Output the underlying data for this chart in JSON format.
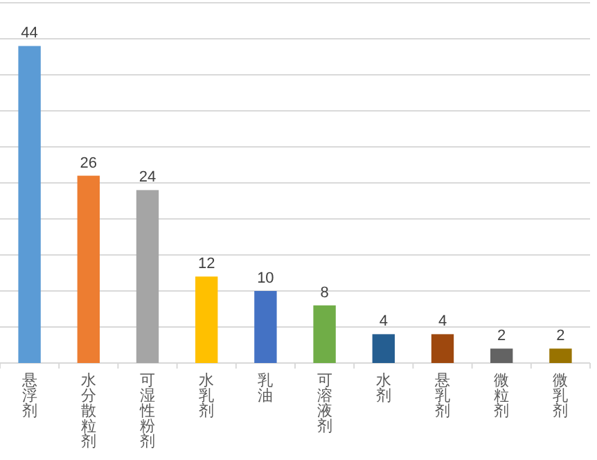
{
  "chart_data": {
    "type": "bar",
    "categories": [
      "悬浮剂",
      "水分散粒剂",
      "可湿性粉剂",
      "水乳剂",
      "乳油",
      "可溶液剂",
      "水剂",
      "悬乳剂",
      "微粒剂",
      "微乳剂"
    ],
    "values": [
      44,
      26,
      24,
      12,
      10,
      8,
      4,
      4,
      2,
      2
    ],
    "colors": [
      "#5b9bd5",
      "#ed7d31",
      "#a5a5a5",
      "#ffc000",
      "#4472c4",
      "#70ad47",
      "#255e91",
      "#9e480e",
      "#636363",
      "#997300"
    ],
    "ylim": [
      0,
      50
    ],
    "yticks": [
      {
        "value": 0,
        "label": null
      },
      {
        "value": 5,
        "label": null
      },
      {
        "value": 10,
        "label": null
      },
      {
        "value": 15,
        "label": null
      },
      {
        "value": 20,
        "label": null
      },
      {
        "value": 25,
        "label": null
      },
      {
        "value": 30,
        "label": null
      },
      {
        "value": 35,
        "label": null
      },
      {
        "value": 40,
        "label": null
      },
      {
        "value": 45,
        "label": null
      },
      {
        "value": 50,
        "label": null
      }
    ],
    "grid": "y",
    "tick_labels": "x",
    "data_labels": true
  }
}
